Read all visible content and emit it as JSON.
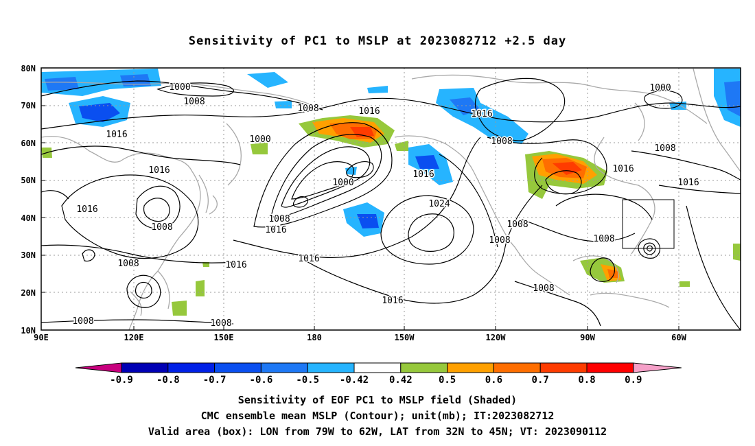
{
  "title": "Sensitivity of PC1 to MSLP at 2023082712 +2.5 day",
  "map": {
    "lat_labels": [
      "80N",
      "70N",
      "60N",
      "50N",
      "40N",
      "30N",
      "20N",
      "10N"
    ],
    "lon_labels": [
      "90E",
      "120E",
      "150E",
      "180",
      "150W",
      "120W",
      "90W",
      "60W"
    ],
    "contour_labels": [
      {
        "text": "1000"
      },
      {
        "text": "1008"
      },
      {
        "text": "1016"
      },
      {
        "text": "1016"
      },
      {
        "text": "1016"
      },
      {
        "text": "1008"
      },
      {
        "text": "1008"
      },
      {
        "text": "1008"
      },
      {
        "text": "1016"
      },
      {
        "text": "1008"
      },
      {
        "text": "1008"
      },
      {
        "text": "1016"
      },
      {
        "text": "1000"
      },
      {
        "text": "1000"
      },
      {
        "text": "1008"
      },
      {
        "text": "1016"
      },
      {
        "text": "1016"
      },
      {
        "text": "1016"
      },
      {
        "text": "1024"
      },
      {
        "text": "1016"
      },
      {
        "text": "1016"
      },
      {
        "text": "1008"
      },
      {
        "text": "1008"
      },
      {
        "text": "1008"
      },
      {
        "text": "1008"
      },
      {
        "text": "1000"
      },
      {
        "text": "1008"
      },
      {
        "text": "1016"
      },
      {
        "text": "1016"
      },
      {
        "text": "1008"
      }
    ],
    "valid_box": {
      "lon_min": "79W",
      "lon_max": "62W",
      "lat_min": "32N",
      "lat_max": "45N"
    }
  },
  "colorbar": {
    "labels": [
      "-0.9",
      "-0.8",
      "-0.7",
      "-0.6",
      "-0.5",
      "-0.42",
      "0.42",
      "0.5",
      "0.6",
      "0.7",
      "0.8",
      "0.9"
    ],
    "colors": [
      "#0000b4",
      "#0020e6",
      "#0a4ff0",
      "#1e78f5",
      "#26b4ff",
      "#ffffff",
      "#96c83c",
      "#ffa000",
      "#ff6e00",
      "#ff3c00",
      "#ff0000"
    ],
    "low_extend_color": "#c8007e",
    "high_extend_color": "#f5a0c8"
  },
  "captions": [
    "Sensitivity of EOF PC1 to MSLP field (Shaded)",
    "CMC ensemble mean MSLP (Contour); unit(mb); IT:2023082712",
    "Valid area (box): LON from 79W to 62W, LAT from 32N to 45N; VT: 2023090112"
  ]
}
